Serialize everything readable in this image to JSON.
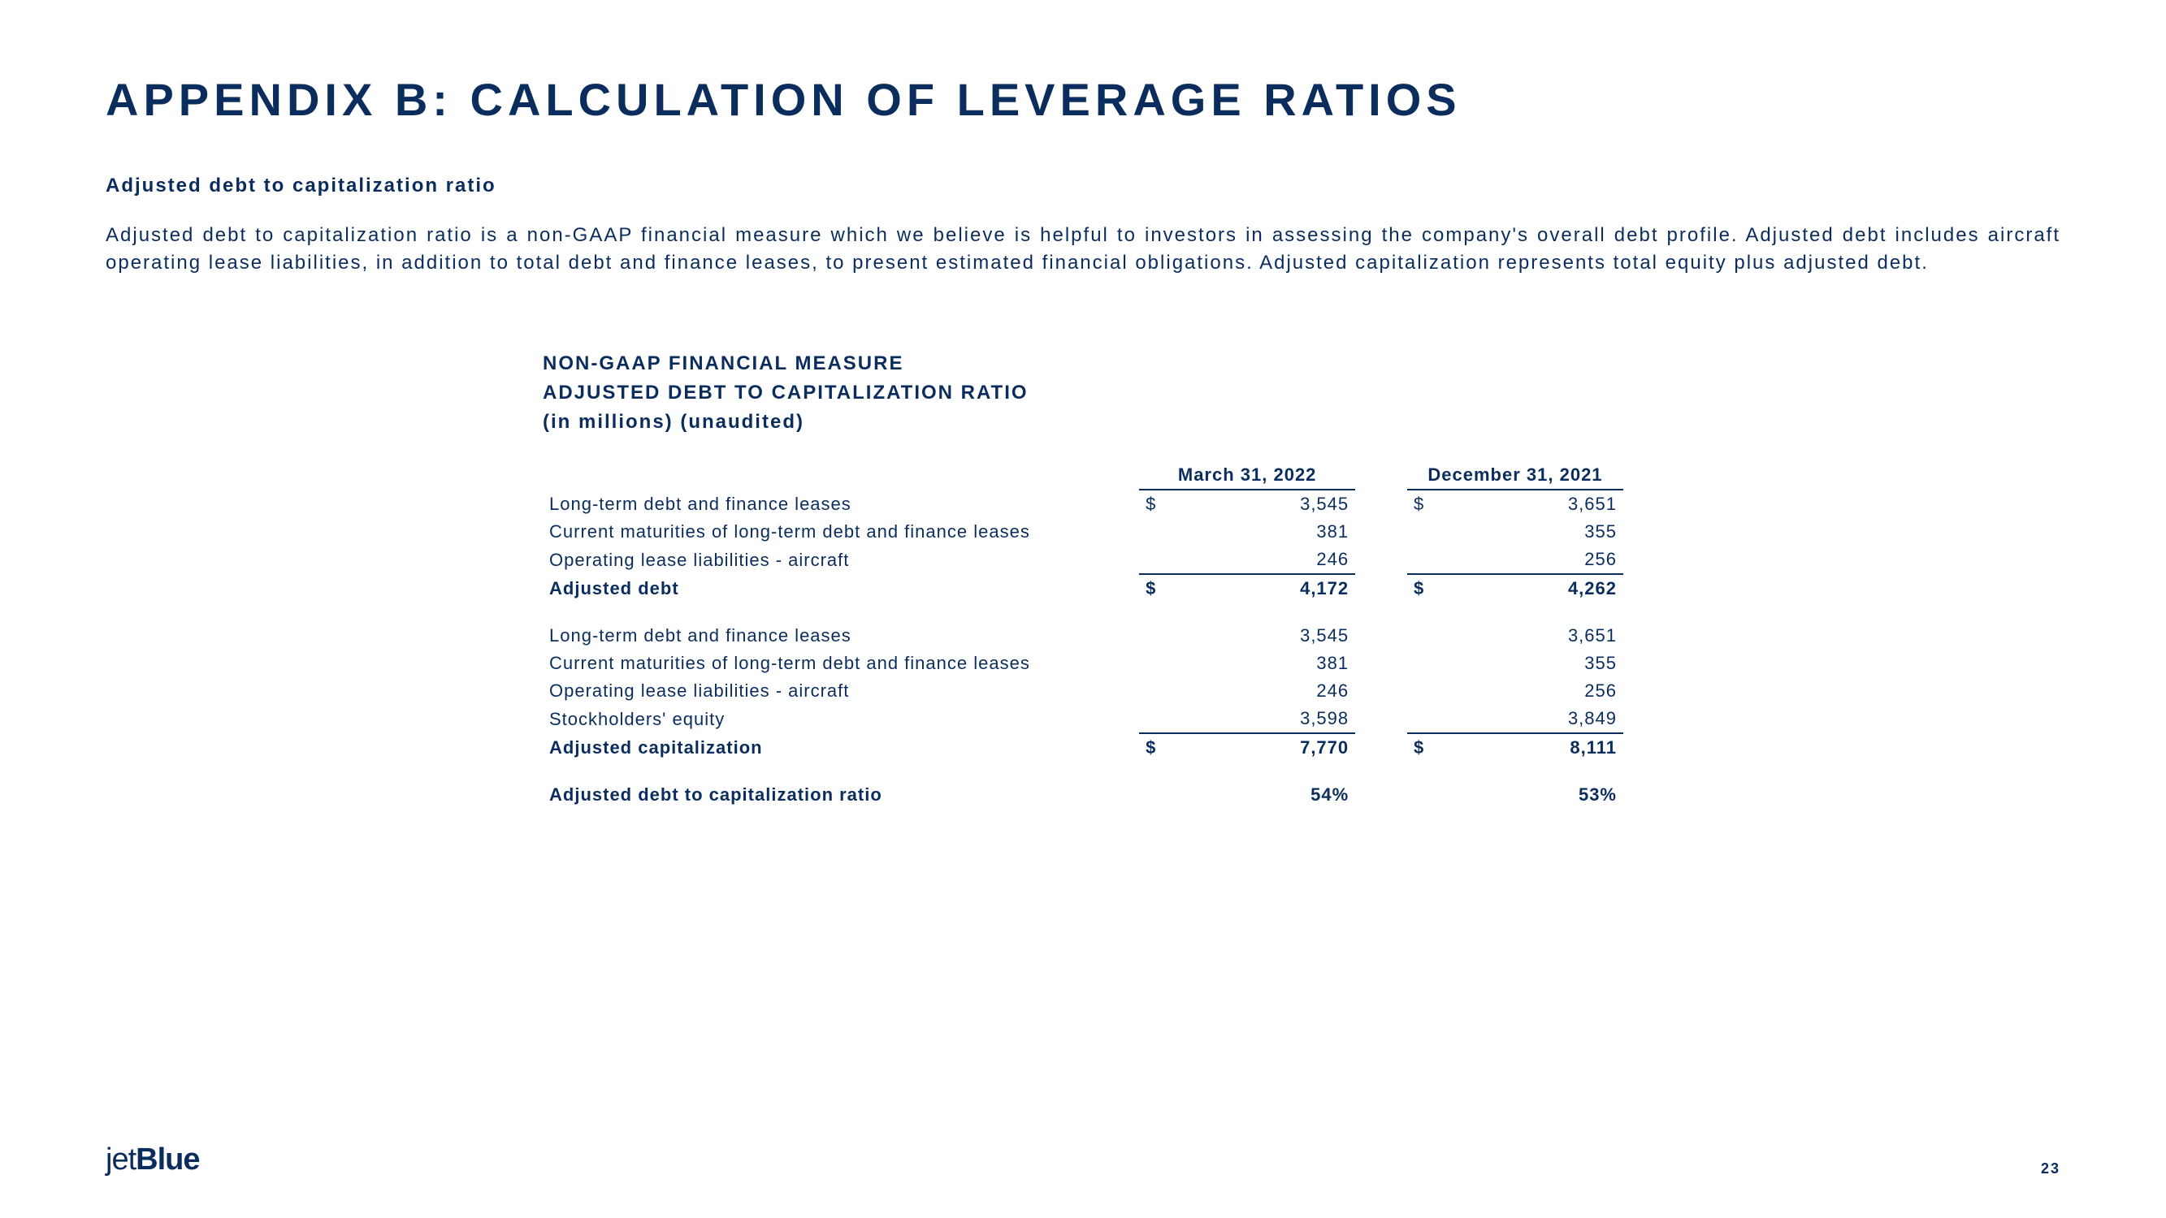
{
  "title": "APPENDIX B: CALCULATION OF LEVERAGE RATIOS",
  "subtitle": "Adjusted debt to capitalization ratio",
  "description": "Adjusted debt to capitalization ratio is a non-GAAP financial measure which we believe is helpful to investors in assessing the company's overall debt profile. Adjusted debt includes aircraft operating lease liabilities, in addition to total debt and finance leases, to present estimated financial obligations. Adjusted capitalization represents total equity plus adjusted debt.",
  "table_header_line1": "NON-GAAP FINANCIAL MEASURE",
  "table_header_line2": "ADJUSTED DEBT TO CAPITALIZATION RATIO",
  "table_header_line3": "(in millions) (unaudited)",
  "col1": "March 31, 2022",
  "col2": "December 31, 2021",
  "rows": {
    "r1": {
      "label": "Long-term debt and finance leases",
      "d1": "$",
      "v1": "3,545",
      "d2": "$",
      "v2": "3,651"
    },
    "r2": {
      "label": "Current maturities of long-term debt and finance leases",
      "d1": "",
      "v1": "381",
      "d2": "",
      "v2": "355"
    },
    "r3": {
      "label": "Operating lease liabilities - aircraft",
      "d1": "",
      "v1": "246",
      "d2": "",
      "v2": "256"
    },
    "r4": {
      "label": "Adjusted debt",
      "d1": "$",
      "v1": "4,172",
      "d2": "$",
      "v2": "4,262"
    },
    "r5": {
      "label": "Long-term debt and finance leases",
      "d1": "",
      "v1": "3,545",
      "d2": "",
      "v2": "3,651"
    },
    "r6": {
      "label": "Current maturities of long-term debt and finance leases",
      "d1": "",
      "v1": "381",
      "d2": "",
      "v2": "355"
    },
    "r7": {
      "label": "Operating lease liabilities - aircraft",
      "d1": "",
      "v1": "246",
      "d2": "",
      "v2": "256"
    },
    "r8": {
      "label": "Stockholders' equity",
      "d1": "",
      "v1": "3,598",
      "d2": "",
      "v2": "3,849"
    },
    "r9": {
      "label": "Adjusted capitalization",
      "d1": "$",
      "v1": "7,770",
      "d2": "$",
      "v2": "8,111"
    },
    "r10": {
      "label": "Adjusted debt to capitalization ratio",
      "d1": "",
      "v1": "54%",
      "d2": "",
      "v2": "53%"
    }
  },
  "logo_part1": "jet",
  "logo_part2": "Blue",
  "page_number": "23",
  "colors": {
    "primary": "#0a2d5e",
    "background": "#ffffff"
  },
  "typography": {
    "title_fontsize": 56,
    "body_fontsize": 24,
    "table_fontsize": 22
  }
}
